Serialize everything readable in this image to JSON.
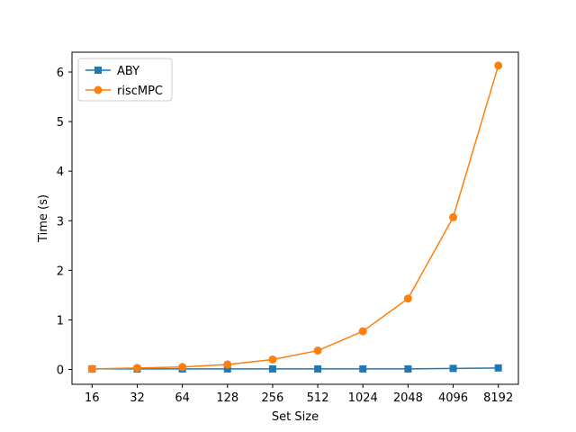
{
  "chart_data": {
    "type": "line",
    "categories": [
      "16",
      "32",
      "64",
      "128",
      "256",
      "512",
      "1024",
      "2048",
      "4096",
      "8192"
    ],
    "xlabel": "Set Size",
    "ylabel": "Time (s)",
    "ylim": [
      -0.3,
      6.4
    ],
    "yticks": [
      0,
      1,
      2,
      3,
      4,
      5,
      6
    ],
    "grid": false,
    "legend": "top-left",
    "series": [
      {
        "name": "ABY",
        "color": "#1f77b4",
        "marker": "square",
        "values": [
          0.01,
          0.01,
          0.01,
          0.01,
          0.01,
          0.01,
          0.01,
          0.01,
          0.02,
          0.03
        ]
      },
      {
        "name": "riscMPC",
        "color": "#ff7f0e",
        "marker": "circle",
        "values": [
          0.01,
          0.03,
          0.05,
          0.1,
          0.2,
          0.38,
          0.77,
          1.43,
          3.07,
          6.13
        ]
      }
    ]
  }
}
